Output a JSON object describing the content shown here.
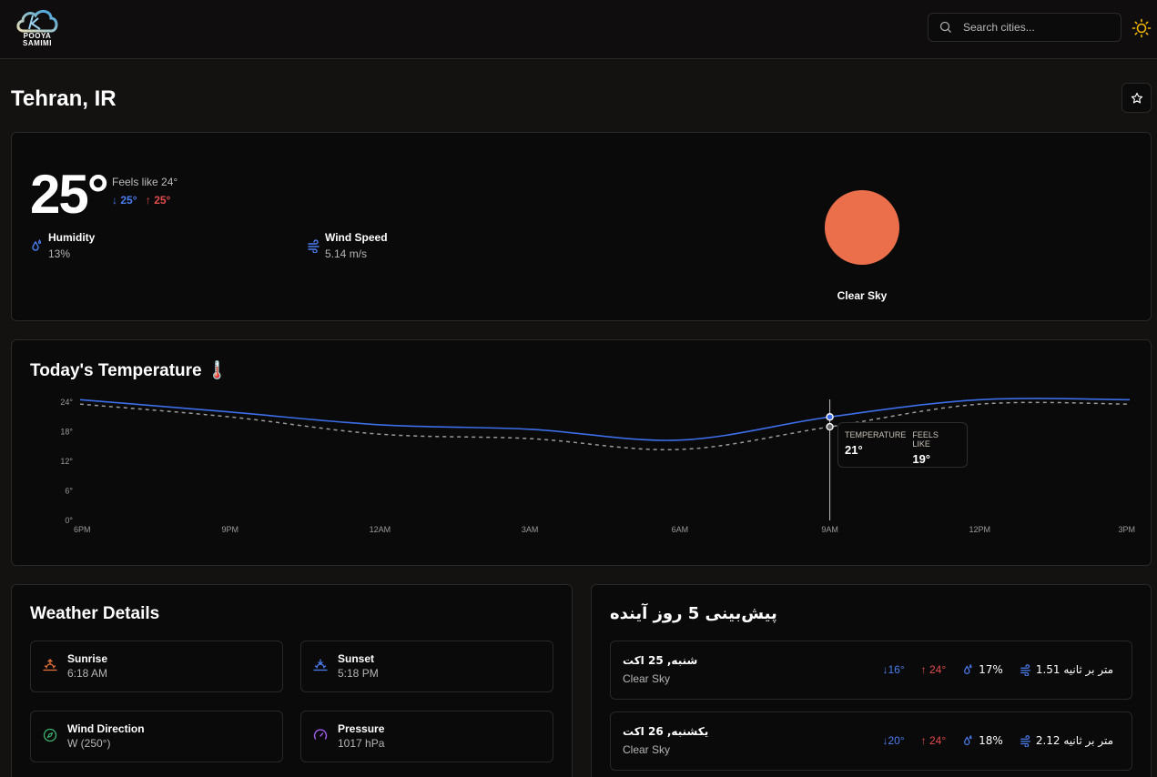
{
  "header": {
    "logo_line1": "POOYA",
    "logo_line2": "SAMIMI",
    "search_placeholder": "Search cities...",
    "theme_icon": "sun-icon"
  },
  "location": {
    "title": "Tehran, IR",
    "favorite_icon": "star-icon"
  },
  "current": {
    "temperature": "25°",
    "feels_like": "Feels like 24°",
    "min": "25°",
    "max": "25°",
    "humidity_label": "Humidity",
    "humidity_value": "13%",
    "wind_label": "Wind Speed",
    "wind_value": "5.14 m/s",
    "condition": "Clear Sky",
    "accent_sun": "#ec6f4b"
  },
  "chart": {
    "title": "Today's Temperature 🌡️",
    "tooltip": {
      "temp_label": "TEMPERATURE",
      "temp_value": "21°",
      "feels_label": "FEELS LIKE",
      "feels_value": "19°"
    }
  },
  "chart_data": {
    "type": "line",
    "title": "Today's Temperature",
    "categories": [
      "6PM",
      "9PM",
      "12AM",
      "3AM",
      "6AM",
      "9AM",
      "12PM",
      "3PM"
    ],
    "series": [
      {
        "name": "Temperature",
        "color": "#3b6ee8",
        "style": "solid",
        "values": [
          24.5,
          22,
          19.4,
          18.5,
          16.3,
          21,
          24.5,
          24.5
        ]
      },
      {
        "name": "Feels Like",
        "color": "#9a9a9a",
        "style": "dashed",
        "values": [
          23.6,
          21,
          17.5,
          16.6,
          14.4,
          19,
          23.6,
          23.6
        ]
      }
    ],
    "yticks": [
      "0°",
      "6°",
      "12°",
      "18°",
      "24°"
    ],
    "ylim": [
      0,
      24
    ],
    "xlabel": "",
    "ylabel": "",
    "grid": false,
    "hover_index": 5
  },
  "details": {
    "title": "Weather Details",
    "items": [
      {
        "label": "Sunrise",
        "value": "6:18 AM",
        "icon": "sunrise-icon",
        "color": "#e8743b"
      },
      {
        "label": "Sunset",
        "value": "5:18 PM",
        "icon": "sunset-icon",
        "color": "#4a7ef0"
      },
      {
        "label": "Wind Direction",
        "value": "W (250°)",
        "icon": "compass-icon",
        "color": "#3cb371"
      },
      {
        "label": "Pressure",
        "value": "1017 hPa",
        "icon": "gauge-icon",
        "color": "#9b5de5"
      }
    ]
  },
  "forecast": {
    "title": "پیش‌بینی 5 روز آینده",
    "days": [
      {
        "day": "شنبه, 25 اکت",
        "desc": "Clear Sky",
        "min": "↓16°",
        "max": "↑ 24°",
        "humidity": "17%",
        "wind": "متر بر ثانیه 1.51"
      },
      {
        "day": "یکشنبه, 26 اکت",
        "desc": "Clear Sky",
        "min": "↓20°",
        "max": "↑ 24°",
        "humidity": "18%",
        "wind": "متر بر ثانیه 2.12"
      }
    ]
  }
}
